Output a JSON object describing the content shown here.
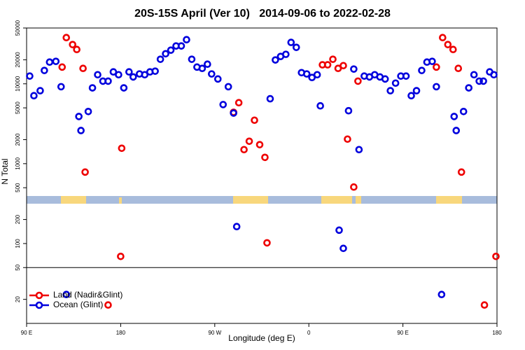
{
  "chart_data": {
    "type": "scatter",
    "title": "20S-15S April (Ver 10)   2014-09-06 to 2022-02-28",
    "x_label": "Longitude (deg E)",
    "y_label": "N Total",
    "log_y": true,
    "legend": "bottomleft",
    "separator_line": 50,
    "xlim": [
      90,
      540
    ],
    "xticks": [
      {
        "value": 90,
        "label": "90 E"
      },
      180,
      {
        "value": 270,
        "label": "90 W"
      },
      {
        "value": 360,
        "label": "0"
      },
      {
        "value": 450,
        "label": "90 E"
      },
      {
        "value": 540,
        "label": "180"
      }
    ],
    "ylim": [
      10,
      50000
    ],
    "yticks": [
      20,
      50,
      100,
      200,
      500,
      1000,
      2000,
      5000,
      10000,
      20000,
      50000
    ],
    "series": [
      {
        "name": "Land (Nadir&Glint)",
        "color": "#ee0000",
        "x": [
          124,
          128,
          134,
          138,
          144,
          146,
          180,
          181,
          288,
          293,
          298,
          303,
          308,
          313,
          318,
          320,
          373,
          378,
          383,
          388,
          393,
          397,
          403,
          407,
          168,
          482,
          488,
          493,
          498,
          503,
          506,
          539,
          528
        ],
        "values": [
          16200,
          37900,
          31000,
          26900,
          15600,
          785,
          69,
          1560,
          4400,
          5800,
          1500,
          1910,
          3500,
          1730,
          1200,
          102,
          17300,
          17300,
          20300,
          15600,
          16900,
          2030,
          510,
          10800,
          17,
          16200,
          37900,
          31000,
          26900,
          15600,
          785,
          69,
          17
        ]
      },
      {
        "name": "Ocean (Glint)",
        "color": "#0000dd",
        "x": [
          93,
          97,
          103,
          107,
          112,
          118,
          123,
          128,
          140,
          142,
          149,
          153,
          158,
          163,
          168,
          173,
          178,
          183,
          188,
          192,
          198,
          203,
          208,
          213,
          218,
          223,
          228,
          233,
          238,
          243,
          248,
          253,
          258,
          263,
          267,
          273,
          278,
          283,
          288,
          291,
          323,
          328,
          333,
          338,
          343,
          348,
          353,
          358,
          363,
          368,
          371,
          389,
          393,
          398,
          403,
          408,
          413,
          418,
          423,
          428,
          433,
          438,
          443,
          448,
          453,
          458,
          463,
          468,
          473,
          478,
          482,
          487,
          499,
          501,
          508,
          513,
          518,
          523,
          527,
          533,
          537
        ],
        "values": [
          12500,
          7100,
          8200,
          14700,
          18700,
          19100,
          9200,
          23,
          3900,
          2600,
          4500,
          8900,
          13000,
          10800,
          10800,
          14100,
          13000,
          8900,
          14100,
          12200,
          13300,
          13000,
          14100,
          14400,
          20300,
          23800,
          26400,
          29800,
          29800,
          35700,
          20300,
          16200,
          15600,
          17600,
          13300,
          11500,
          5500,
          9200,
          4300,
          163,
          6500,
          19900,
          22000,
          23400,
          33000,
          28600,
          13800,
          13300,
          12000,
          13000,
          5300,
          147,
          87,
          4600,
          15300,
          1500,
          12500,
          12200,
          13000,
          12200,
          11500,
          8200,
          10200,
          12500,
          12500,
          7100,
          8200,
          14700,
          18700,
          19100,
          9200,
          23,
          3900,
          2600,
          4500,
          8900,
          13000,
          10800,
          10800,
          14100,
          13000
        ]
      }
    ]
  }
}
